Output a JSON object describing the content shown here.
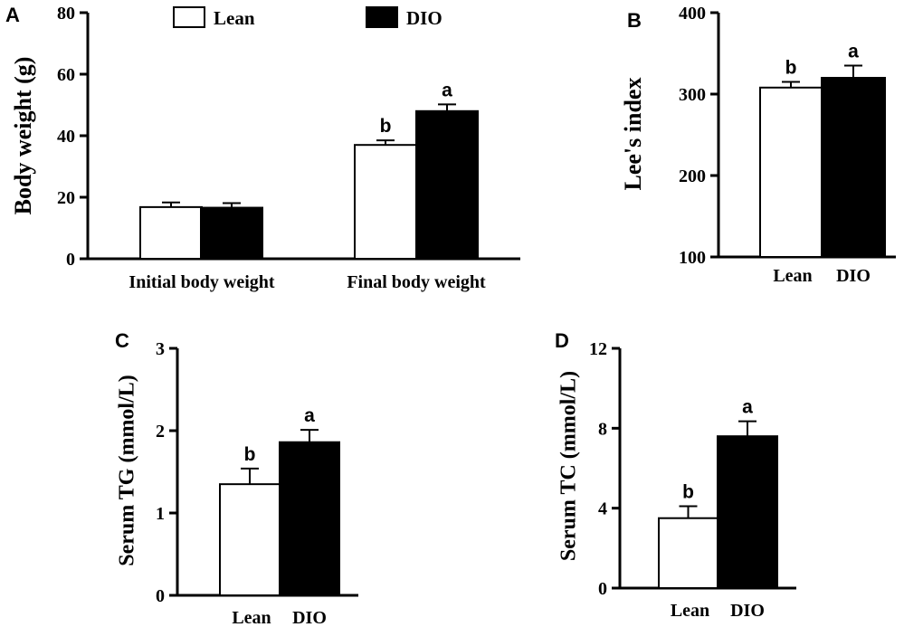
{
  "chart_data": [
    {
      "panel": "A",
      "type": "bar",
      "categories": [
        "Initial body weight",
        "Final body weight"
      ],
      "series": [
        {
          "name": "Lean",
          "values": [
            16.8,
            37.0
          ],
          "errors": [
            1.5,
            1.5
          ],
          "sig": [
            "",
            "b"
          ],
          "color": "#ffffff"
        },
        {
          "name": "DIO",
          "values": [
            16.6,
            48.0
          ],
          "errors": [
            1.5,
            2.2
          ],
          "sig": [
            "",
            "a"
          ],
          "color": "#000000"
        }
      ],
      "ylabel": "Body weight (g)",
      "ylim": [
        0,
        80
      ],
      "yticks": [
        0,
        20,
        40,
        60,
        80
      ],
      "legend": "top"
    },
    {
      "panel": "B",
      "type": "bar",
      "categories": [
        "Lean",
        "DIO"
      ],
      "values": [
        308,
        320
      ],
      "errors": [
        7,
        15
      ],
      "sig": [
        "b",
        "a"
      ],
      "colors": [
        "#ffffff",
        "#000000"
      ],
      "ylabel": "Lee's index",
      "ylim": [
        100,
        400
      ],
      "yticks": [
        100,
        200,
        300,
        400
      ]
    },
    {
      "panel": "C",
      "type": "bar",
      "categories": [
        "Lean",
        "DIO"
      ],
      "values": [
        1.35,
        1.86
      ],
      "errors": [
        0.19,
        0.15
      ],
      "sig": [
        "b",
        "a"
      ],
      "colors": [
        "#ffffff",
        "#000000"
      ],
      "ylabel": "Serum TG (mmol/L)",
      "ylim": [
        0,
        3
      ],
      "yticks": [
        0,
        1,
        2,
        3
      ]
    },
    {
      "panel": "D",
      "type": "bar",
      "categories": [
        "Lean",
        "DIO"
      ],
      "values": [
        3.5,
        7.6
      ],
      "errors": [
        0.6,
        0.75
      ],
      "sig": [
        "b",
        "a"
      ],
      "colors": [
        "#ffffff",
        "#000000"
      ],
      "ylabel": "Serum TC (mmol/L)",
      "ylim": [
        0,
        12
      ],
      "yticks": [
        0,
        4,
        8,
        12
      ]
    }
  ]
}
